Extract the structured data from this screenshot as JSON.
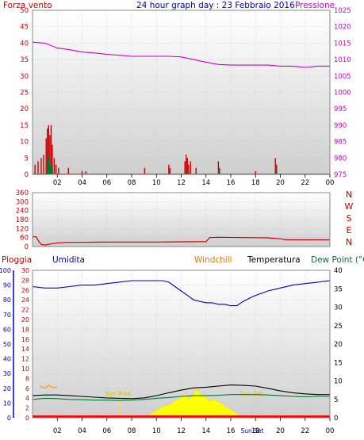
{
  "header": {
    "title": "24 hour graph day : 23 Febbraio 2016",
    "left_label": "Forza vento",
    "right_label": "Pressione"
  },
  "legend3": {
    "pioggia": "Pioggia",
    "umidita": "Umidita",
    "windchill": "Windchill",
    "temperatura": "Temperatura",
    "dewpoint": "Dew Point (°C"
  },
  "colors": {
    "wind": "#cc0000",
    "pressure": "#cc00cc",
    "direction": "#cc0000",
    "humidity": "#0000cc",
    "temperature": "#000000",
    "dewpoint": "#007733",
    "windchill": "#ff8800",
    "solar": "#ffff00",
    "rain": "#ff0000"
  },
  "chart_data": [
    {
      "type": "bar",
      "name": "wind_pressure",
      "x_ticks": [
        "02",
        "04",
        "06",
        "08",
        "10",
        "12",
        "14",
        "16",
        "18",
        "20",
        "22",
        "00"
      ],
      "y_left_ticks": [
        0,
        5,
        10,
        15,
        20,
        25,
        30,
        35,
        40,
        45,
        50
      ],
      "y_right_ticks": [
        975,
        980,
        985,
        990,
        995,
        1000,
        1005,
        1010,
        1015,
        1020,
        1025
      ],
      "ylim_left": [
        0,
        50
      ],
      "ylim_right": [
        975,
        1025
      ],
      "gust_bars": [
        {
          "x": 0.2,
          "v": 3
        },
        {
          "x": 0.45,
          "v": 4
        },
        {
          "x": 0.7,
          "v": 5
        },
        {
          "x": 0.9,
          "v": 6
        },
        {
          "x": 1.1,
          "v": 11
        },
        {
          "x": 1.2,
          "v": 14
        },
        {
          "x": 1.3,
          "v": 15
        },
        {
          "x": 1.4,
          "v": 12
        },
        {
          "x": 1.5,
          "v": 15
        },
        {
          "x": 1.6,
          "v": 9
        },
        {
          "x": 1.75,
          "v": 5
        },
        {
          "x": 1.9,
          "v": 3
        },
        {
          "x": 2.1,
          "v": 2
        },
        {
          "x": 2.9,
          "v": 2
        },
        {
          "x": 4.0,
          "v": 1
        },
        {
          "x": 4.3,
          "v": 1
        },
        {
          "x": 9.05,
          "v": 2
        },
        {
          "x": 11.0,
          "v": 3
        },
        {
          "x": 11.1,
          "v": 2
        },
        {
          "x": 12.3,
          "v": 4
        },
        {
          "x": 12.4,
          "v": 6
        },
        {
          "x": 12.5,
          "v": 5
        },
        {
          "x": 12.6,
          "v": 3
        },
        {
          "x": 12.75,
          "v": 4
        },
        {
          "x": 13.2,
          "v": 2
        },
        {
          "x": 15.0,
          "v": 4
        },
        {
          "x": 15.1,
          "v": 2
        },
        {
          "x": 18.0,
          "v": 1
        },
        {
          "x": 19.6,
          "v": 5
        },
        {
          "x": 19.7,
          "v": 3
        }
      ],
      "avg_bars": [
        {
          "x": 1.2,
          "v": 4
        },
        {
          "x": 1.3,
          "v": 6
        },
        {
          "x": 1.4,
          "v": 5
        },
        {
          "x": 1.5,
          "v": 3
        },
        {
          "x": 1.6,
          "v": 2
        },
        {
          "x": 11.05,
          "v": 1
        },
        {
          "x": 12.5,
          "v": 1
        },
        {
          "x": 15.05,
          "v": 1
        },
        {
          "x": 19.65,
          "v": 1
        }
      ],
      "pressure": [
        [
          0,
          1015.3
        ],
        [
          1,
          1015
        ],
        [
          2,
          1013.5
        ],
        [
          3,
          1013
        ],
        [
          4,
          1012.3
        ],
        [
          5,
          1012
        ],
        [
          6,
          1011.6
        ],
        [
          7,
          1011.3
        ],
        [
          8,
          1011
        ],
        [
          9,
          1011
        ],
        [
          10,
          1011
        ],
        [
          11,
          1011
        ],
        [
          12,
          1010.8
        ],
        [
          13,
          1010
        ],
        [
          14,
          1009.2
        ],
        [
          15,
          1008.5
        ],
        [
          16,
          1008.3
        ],
        [
          17,
          1008.3
        ],
        [
          18,
          1008.3
        ],
        [
          19,
          1008.3
        ],
        [
          20,
          1008
        ],
        [
          21,
          1008
        ],
        [
          22,
          1007.6
        ],
        [
          23,
          1008
        ],
        [
          24,
          1008
        ]
      ]
    },
    {
      "type": "line",
      "name": "wind_direction",
      "y_ticks": [
        0,
        60,
        120,
        180,
        240,
        300,
        360
      ],
      "ylim": [
        0,
        360
      ],
      "compass": [
        "N",
        "W",
        "S",
        "E",
        "N"
      ],
      "values": [
        [
          0,
          65
        ],
        [
          0.3,
          65
        ],
        [
          0.5,
          35
        ],
        [
          0.7,
          15
        ],
        [
          1.0,
          10
        ],
        [
          1.3,
          15
        ],
        [
          2,
          25
        ],
        [
          3,
          28
        ],
        [
          4,
          28
        ],
        [
          6,
          30
        ],
        [
          8,
          30
        ],
        [
          10,
          30
        ],
        [
          12,
          32
        ],
        [
          14,
          33
        ],
        [
          14.3,
          60
        ],
        [
          15,
          62
        ],
        [
          17,
          60
        ],
        [
          19,
          58
        ],
        [
          20,
          52
        ],
        [
          20.5,
          45
        ],
        [
          22,
          45
        ],
        [
          24,
          45
        ]
      ]
    },
    {
      "type": "line",
      "name": "humidity_temperature",
      "y_humidity_ticks": [
        0,
        10,
        20,
        30,
        40,
        50,
        60,
        70,
        80,
        90,
        100
      ],
      "y_temp_left_ticks": [
        0,
        2,
        4,
        6,
        8,
        10,
        12,
        14,
        16,
        18,
        20,
        22,
        24,
        26,
        28,
        30
      ],
      "y_right_ticks": [
        0,
        5,
        10,
        15,
        20,
        25,
        30,
        35,
        40
      ],
      "markers": [
        "Sun Rise",
        "Sun Set",
        "Sun Set"
      ],
      "humidity": [
        [
          0,
          89
        ],
        [
          1,
          88
        ],
        [
          2,
          88
        ],
        [
          3,
          89
        ],
        [
          4,
          90
        ],
        [
          5,
          90
        ],
        [
          6,
          91
        ],
        [
          7,
          92
        ],
        [
          8,
          93
        ],
        [
          9,
          93
        ],
        [
          10,
          93
        ],
        [
          10.5,
          93
        ],
        [
          11,
          92
        ],
        [
          11.5,
          89
        ],
        [
          12,
          86
        ],
        [
          12.5,
          83
        ],
        [
          13,
          80
        ],
        [
          13.5,
          79
        ],
        [
          14,
          78
        ],
        [
          14.5,
          78
        ],
        [
          15,
          77
        ],
        [
          15.5,
          77
        ],
        [
          16,
          76
        ],
        [
          16.5,
          76
        ],
        [
          17,
          79
        ],
        [
          17.5,
          81
        ],
        [
          18,
          83
        ],
        [
          19,
          86
        ],
        [
          20,
          88
        ],
        [
          21,
          90
        ],
        [
          22,
          91
        ],
        [
          23,
          92
        ],
        [
          24,
          93
        ]
      ],
      "temperature": [
        [
          0,
          6
        ],
        [
          1,
          6.2
        ],
        [
          2,
          6.2
        ],
        [
          3,
          6.0
        ],
        [
          4,
          5.8
        ],
        [
          5,
          5.6
        ],
        [
          6,
          5.4
        ],
        [
          7,
          5.3
        ],
        [
          8,
          5.2
        ],
        [
          9,
          5.4
        ],
        [
          10,
          6
        ],
        [
          11,
          6.8
        ],
        [
          12,
          7.5
        ],
        [
          13,
          8.1
        ],
        [
          14,
          8.3
        ],
        [
          15,
          8.6
        ],
        [
          16,
          8.9
        ],
        [
          17,
          8.8
        ],
        [
          18,
          8.6
        ],
        [
          19,
          8.0
        ],
        [
          20,
          7.3
        ],
        [
          21,
          6.8
        ],
        [
          22,
          6.5
        ],
        [
          23,
          6.3
        ],
        [
          24,
          6.3
        ]
      ],
      "dewpoint": [
        [
          0,
          5
        ],
        [
          1,
          5.3
        ],
        [
          2,
          5.2
        ],
        [
          3,
          5.0
        ],
        [
          4,
          4.9
        ],
        [
          5,
          4.8
        ],
        [
          6,
          4.8
        ],
        [
          7,
          4.7
        ],
        [
          8,
          4.8
        ],
        [
          9,
          5.0
        ],
        [
          10,
          5.3
        ],
        [
          11,
          5.5
        ],
        [
          12,
          5.8
        ],
        [
          13,
          6.0
        ],
        [
          14,
          6.0
        ],
        [
          15,
          6.1
        ],
        [
          16,
          6.3
        ],
        [
          17,
          6.3
        ],
        [
          18,
          6.3
        ],
        [
          19,
          6.2
        ],
        [
          20,
          6.0
        ],
        [
          21,
          5.8
        ],
        [
          22,
          5.7
        ],
        [
          23,
          5.8
        ],
        [
          24,
          5.8
        ]
      ],
      "solar": [
        [
          7,
          0
        ],
        [
          8,
          0
        ],
        [
          9,
          0.2
        ],
        [
          9.5,
          1
        ],
        [
          10,
          2
        ],
        [
          10.5,
          3
        ],
        [
          11,
          3.5
        ],
        [
          11.5,
          4.5
        ],
        [
          12,
          5.5
        ],
        [
          12.3,
          6.5
        ],
        [
          12.6,
          5
        ],
        [
          13,
          6.5
        ],
        [
          13.3,
          7.8
        ],
        [
          13.6,
          6.2
        ],
        [
          14,
          5.5
        ],
        [
          14.3,
          4.5
        ],
        [
          14.6,
          5
        ],
        [
          15,
          4.3
        ],
        [
          15.3,
          3.8
        ],
        [
          15.6,
          3
        ],
        [
          16,
          2.2
        ],
        [
          16.5,
          1.1
        ],
        [
          17,
          0.5
        ],
        [
          17.5,
          0.1
        ],
        [
          18,
          0
        ]
      ],
      "rain": [
        [
          0,
          0.3
        ],
        [
          24,
          0.3
        ]
      ]
    }
  ]
}
